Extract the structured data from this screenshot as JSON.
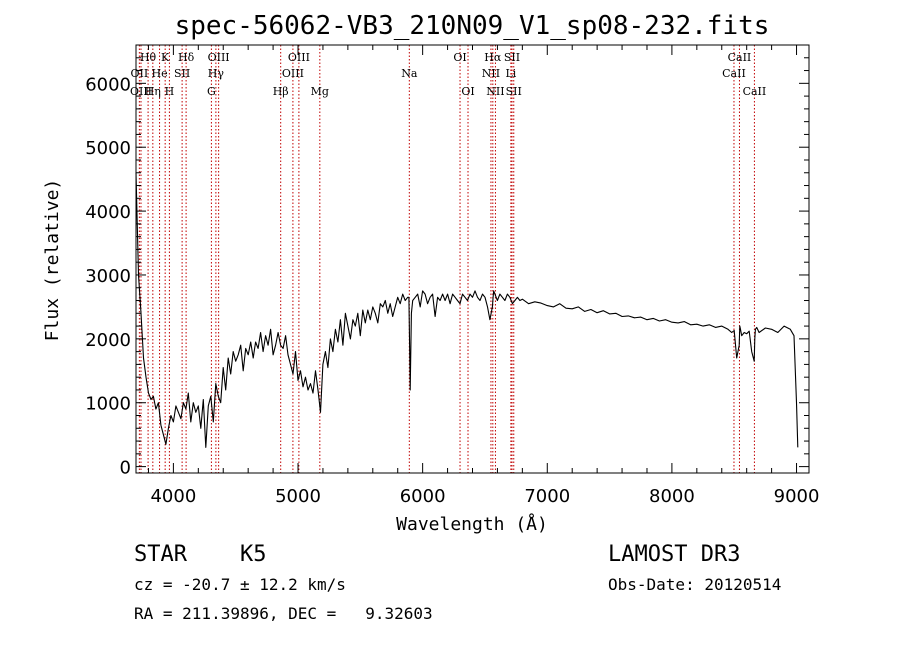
{
  "chart_data": {
    "type": "line",
    "title": "spec-56062-VB3_210N09_V1_sp08-232.fits",
    "xlabel": "Wavelength (Å)",
    "ylabel": "Flux (relative)",
    "xlim": [
      3700,
      9100
    ],
    "ylim": [
      -100,
      6600
    ],
    "xticks": [
      4000,
      5000,
      6000,
      7000,
      8000,
      9000
    ],
    "yticks": [
      0,
      1000,
      2000,
      3000,
      4000,
      5000,
      6000
    ],
    "series": [
      {
        "name": "spectrum",
        "x": [
          3700,
          3720,
          3740,
          3760,
          3780,
          3800,
          3820,
          3840,
          3860,
          3880,
          3900,
          3920,
          3940,
          3960,
          3980,
          4000,
          4020,
          4040,
          4060,
          4080,
          4100,
          4120,
          4140,
          4160,
          4180,
          4200,
          4220,
          4240,
          4260,
          4280,
          4300,
          4320,
          4340,
          4360,
          4380,
          4400,
          4420,
          4440,
          4460,
          4480,
          4500,
          4520,
          4540,
          4560,
          4580,
          4600,
          4620,
          4640,
          4660,
          4680,
          4700,
          4720,
          4740,
          4760,
          4780,
          4800,
          4820,
          4840,
          4860,
          4880,
          4900,
          4920,
          4940,
          4960,
          4980,
          5000,
          5020,
          5040,
          5060,
          5080,
          5100,
          5120,
          5140,
          5160,
          5180,
          5200,
          5220,
          5240,
          5260,
          5280,
          5300,
          5320,
          5340,
          5360,
          5380,
          5400,
          5420,
          5440,
          5460,
          5480,
          5500,
          5520,
          5540,
          5560,
          5580,
          5600,
          5620,
          5640,
          5660,
          5680,
          5700,
          5720,
          5740,
          5760,
          5780,
          5800,
          5820,
          5840,
          5860,
          5880,
          5890,
          5895,
          5900,
          5910,
          5920,
          5940,
          5960,
          5980,
          6000,
          6020,
          6040,
          6060,
          6080,
          6100,
          6120,
          6140,
          6160,
          6180,
          6200,
          6220,
          6240,
          6260,
          6280,
          6300,
          6320,
          6340,
          6360,
          6380,
          6400,
          6420,
          6440,
          6460,
          6480,
          6500,
          6520,
          6540,
          6560,
          6565,
          6570,
          6580,
          6600,
          6620,
          6640,
          6660,
          6680,
          6700,
          6720,
          6740,
          6760,
          6780,
          6800,
          6850,
          6900,
          6950,
          7000,
          7050,
          7100,
          7150,
          7200,
          7250,
          7300,
          7350,
          7400,
          7450,
          7500,
          7550,
          7600,
          7650,
          7700,
          7750,
          7800,
          7850,
          7900,
          7950,
          8000,
          8050,
          8100,
          8150,
          8200,
          8250,
          8300,
          8350,
          8400,
          8450,
          8480,
          8500,
          8520,
          8540,
          8545,
          8550,
          8560,
          8580,
          8600,
          8620,
          8640,
          8660,
          8665,
          8670,
          8680,
          8700,
          8750,
          8800,
          8850,
          8900,
          8950,
          8980,
          9000,
          9010
        ],
        "y": [
          4600,
          3000,
          2400,
          1700,
          1400,
          1150,
          1050,
          1100,
          900,
          1000,
          650,
          500,
          350,
          600,
          800,
          700,
          950,
          850,
          750,
          1000,
          900,
          1150,
          700,
          1000,
          850,
          950,
          600,
          1050,
          300,
          950,
          1100,
          700,
          1300,
          1100,
          1000,
          1550,
          1200,
          1700,
          1450,
          1800,
          1650,
          1750,
          1900,
          1500,
          1850,
          1750,
          1950,
          1700,
          1950,
          1850,
          2100,
          1800,
          2050,
          1900,
          2150,
          1750,
          1900,
          2100,
          1900,
          1850,
          2050,
          1750,
          1600,
          1450,
          1800,
          1350,
          1500,
          1250,
          1400,
          1200,
          1300,
          1150,
          1500,
          1200,
          850,
          1600,
          1800,
          1550,
          2000,
          1800,
          2150,
          1950,
          2300,
          1900,
          2400,
          2200,
          2000,
          2300,
          2200,
          2400,
          2050,
          2450,
          2250,
          2450,
          2300,
          2500,
          2400,
          2250,
          2550,
          2500,
          2600,
          2400,
          2550,
          2350,
          2500,
          2650,
          2550,
          2700,
          2600,
          2650,
          2650,
          1900,
          1200,
          2400,
          2600,
          2650,
          2700,
          2500,
          2750,
          2700,
          2550,
          2650,
          2700,
          2350,
          2650,
          2600,
          2700,
          2600,
          2700,
          2550,
          2700,
          2650,
          2600,
          2550,
          2700,
          2650,
          2600,
          2700,
          2650,
          2750,
          2650,
          2600,
          2700,
          2650,
          2500,
          2300,
          2500,
          2650,
          2750,
          2700,
          2600,
          2700,
          2650,
          2600,
          2700,
          2650,
          2550,
          2600,
          2650,
          2600,
          2620,
          2550,
          2580,
          2560,
          2520,
          2500,
          2550,
          2480,
          2470,
          2500,
          2430,
          2460,
          2410,
          2440,
          2390,
          2400,
          2350,
          2360,
          2330,
          2340,
          2300,
          2320,
          2280,
          2300,
          2260,
          2250,
          2270,
          2220,
          2230,
          2200,
          2220,
          2180,
          2200,
          2150,
          2100,
          2130,
          1700,
          1900,
          2200,
          2150,
          2050,
          2100,
          2080,
          2120,
          1800,
          1650,
          2000,
          2150,
          2180,
          2100,
          2170,
          2150,
          2100,
          2200,
          2150,
          2050,
          1000,
          300
        ]
      }
    ],
    "lines": [
      {
        "label": "Hθ",
        "x": 3797,
        "row": 0
      },
      {
        "label": "OII",
        "x": 3727,
        "row": 1
      },
      {
        "label": "OIII",
        "x": 3740,
        "row": 2
      },
      {
        "label": "Hη",
        "x": 3835,
        "row": 2
      },
      {
        "label": "He",
        "x": 3889,
        "row": 1
      },
      {
        "label": "K",
        "x": 3934,
        "row": 0
      },
      {
        "label": "H",
        "x": 3968,
        "row": 2
      },
      {
        "label": "SII",
        "x": 4070,
        "row": 1
      },
      {
        "label": "Hδ",
        "x": 4102,
        "row": 0
      },
      {
        "label": "OIII",
        "x": 4363,
        "row": 0
      },
      {
        "label": "Hγ",
        "x": 4341,
        "row": 1
      },
      {
        "label": "G",
        "x": 4305,
        "row": 2
      },
      {
        "label": "Hβ",
        "x": 4861,
        "row": 2
      },
      {
        "label": "OIII",
        "x": 5007,
        "row": 0
      },
      {
        "label": "OIII",
        "x": 4959,
        "row": 1
      },
      {
        "label": "Mg",
        "x": 5175,
        "row": 2
      },
      {
        "label": "Na",
        "x": 5893,
        "row": 1
      },
      {
        "label": "OI",
        "x": 6300,
        "row": 0
      },
      {
        "label": "OI",
        "x": 6364,
        "row": 2
      },
      {
        "label": "Hα",
        "x": 6563,
        "row": 0
      },
      {
        "label": "NII",
        "x": 6548,
        "row": 1
      },
      {
        "label": "NII",
        "x": 6584,
        "row": 2
      },
      {
        "label": "SII",
        "x": 6717,
        "row": 0
      },
      {
        "label": "Li",
        "x": 6708,
        "row": 1
      },
      {
        "label": "SII",
        "x": 6731,
        "row": 2
      },
      {
        "label": "CaII",
        "x": 8542,
        "row": 0
      },
      {
        "label": "CaII",
        "x": 8498,
        "row": 1
      },
      {
        "label": "CaII",
        "x": 8662,
        "row": 2
      }
    ]
  },
  "info": {
    "object_class": "STAR",
    "subclass": "K5",
    "survey": "LAMOST DR3",
    "cz": "cz = -20.7 ± 12.2 km/s",
    "obs_date": "Obs-Date: 20120514",
    "coords": "RA = 211.39896, DEC =   9.32603"
  },
  "colors": {
    "axis": "#000000",
    "spectrum": "#000000",
    "marker": "#c00000"
  }
}
